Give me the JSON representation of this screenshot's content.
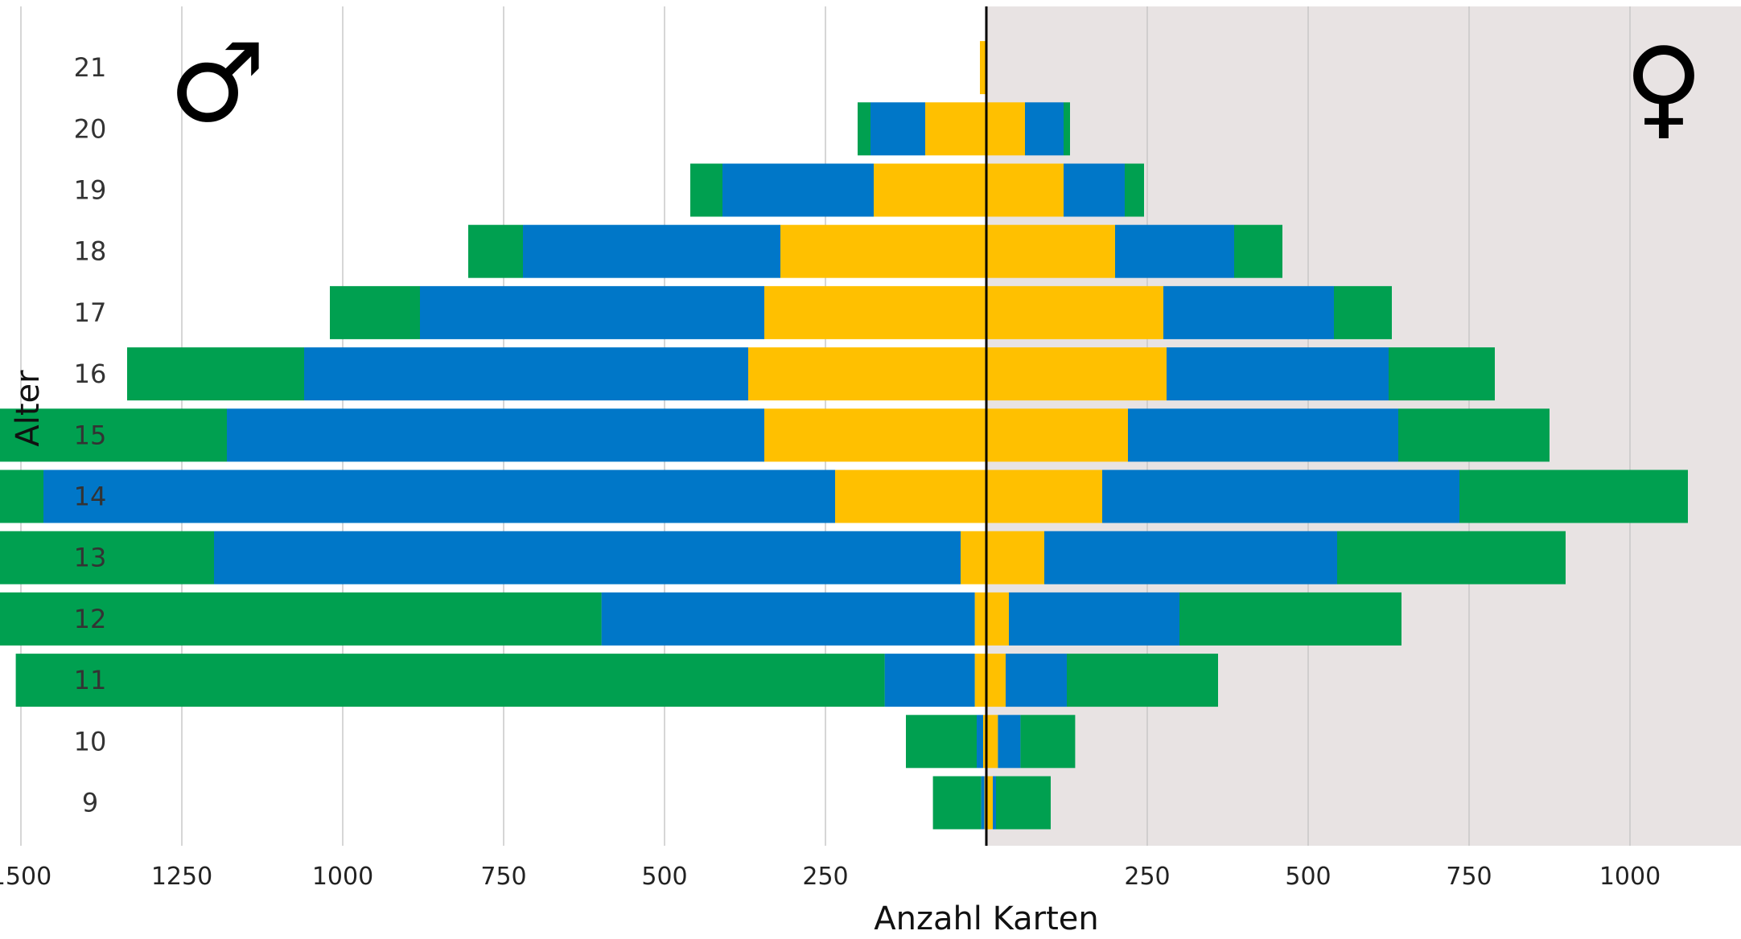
{
  "chart_data": {
    "type": "bar",
    "orientation": "horizontal",
    "layout": "population-pyramid",
    "xlabel": "Anzahl Karten",
    "ylabel": "Alter",
    "male_symbol": "♂",
    "female_symbol": "♀",
    "xlim_male": [
      0,
      2500
    ],
    "xlim_female": [
      0,
      2250
    ],
    "male_ticks": [
      "2500",
      "2250",
      "2000",
      "1750",
      "1500",
      "1250",
      "1000",
      "750",
      "500",
      "250"
    ],
    "female_ticks": [
      "250",
      "500",
      "750",
      "1000",
      "1250",
      "1500",
      "1750",
      "2000",
      "2250"
    ],
    "female_background": "#e8e3e3",
    "grid": true,
    "categories": [
      "21",
      "20",
      "19",
      "18",
      "17",
      "16",
      "15",
      "14",
      "13",
      "12",
      "11",
      "10",
      "9"
    ],
    "series": [
      {
        "color": "#ffc000",
        "male": [
          10,
          95,
          175,
          320,
          345,
          370,
          345,
          235,
          40,
          18,
          18,
          5,
          3
        ],
        "female": [
          0,
          60,
          120,
          200,
          275,
          280,
          220,
          180,
          90,
          35,
          30,
          18,
          10
        ]
      },
      {
        "color": "#0077c8",
        "male": [
          0,
          85,
          235,
          400,
          535,
          690,
          835,
          1230,
          1160,
          580,
          140,
          10,
          5
        ],
        "female": [
          0,
          60,
          95,
          185,
          265,
          345,
          420,
          555,
          455,
          265,
          95,
          35,
          5
        ]
      },
      {
        "color": "#00a050",
        "male": [
          0,
          20,
          50,
          85,
          140,
          275,
          505,
          915,
          1265,
          1210,
          1350,
          110,
          75
        ],
        "female": [
          0,
          10,
          30,
          75,
          90,
          165,
          235,
          355,
          355,
          345,
          235,
          85,
          85
        ]
      }
    ]
  }
}
